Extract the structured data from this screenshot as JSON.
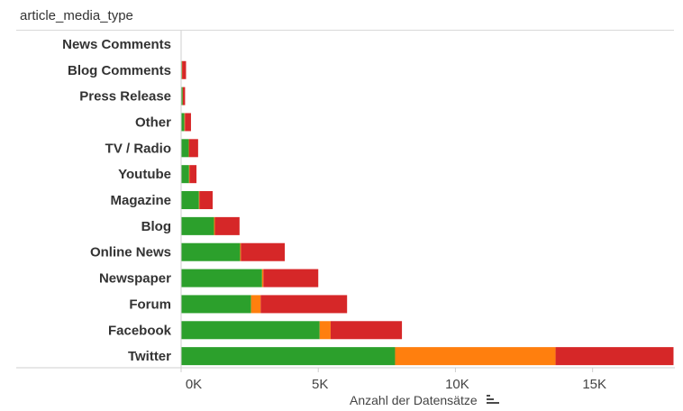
{
  "chart_data": {
    "type": "bar",
    "orientation": "horizontal",
    "stacked": true,
    "dimension_header": "article_media_type",
    "categories": [
      "News Comments",
      "Blog Comments",
      "Press Release",
      "Other",
      "TV / Radio",
      "Youtube",
      "Magazine",
      "Blog",
      "Online News",
      "Newspaper",
      "Forum",
      "Facebook",
      "Twitter"
    ],
    "series": [
      {
        "color": "#2ca02c",
        "values": [
          10,
          30,
          60,
          120,
          280,
          290,
          650,
          1200,
          2150,
          2950,
          2550,
          5050,
          7800
        ]
      },
      {
        "color": "#ff7f0e",
        "values": [
          0,
          10,
          5,
          20,
          10,
          20,
          20,
          30,
          30,
          50,
          350,
          400,
          5850
        ]
      },
      {
        "color": "#d62728",
        "values": [
          0,
          140,
          80,
          220,
          330,
          250,
          480,
          900,
          1600,
          2000,
          3150,
          2600,
          4300
        ]
      }
    ],
    "xaxis": {
      "label": "Anzahl der Datensätze",
      "ticks": [
        0,
        5000,
        10000,
        15000
      ],
      "tick_labels": [
        "0K",
        "5K",
        "10K",
        "15K"
      ],
      "range": [
        0,
        18000
      ]
    },
    "grid": false
  },
  "sort_icon": "sort-descending-icon"
}
